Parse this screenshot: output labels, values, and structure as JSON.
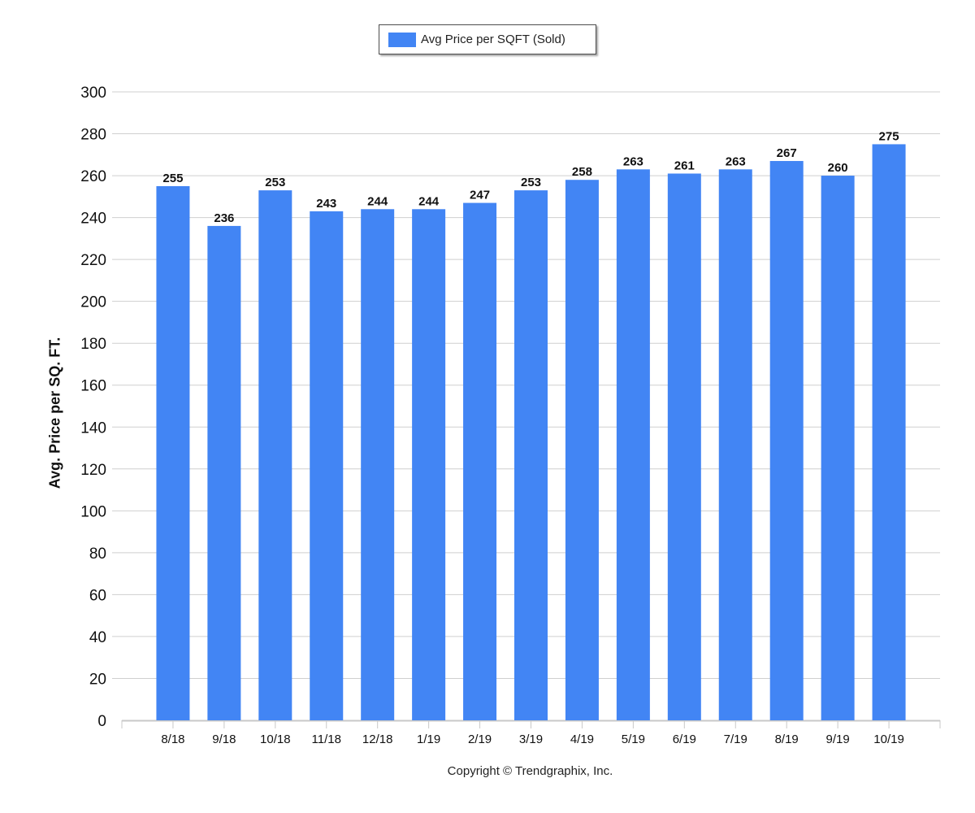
{
  "legend": {
    "label": "Avg Price per SQFT (Sold)",
    "color": "#4285f4"
  },
  "footer": {
    "copyright": "Copyright © Trendgraphix, Inc."
  },
  "chart_data": {
    "type": "bar",
    "ylabel": "Avg. Price per SQ. FT.",
    "xlabel": "",
    "ylim": [
      0,
      300
    ],
    "ytick_step": 20,
    "grid": true,
    "legend_position": "top-center",
    "bar_color": "#4285f4",
    "categories": [
      "8/18",
      "9/18",
      "10/18",
      "11/18",
      "12/18",
      "1/19",
      "2/19",
      "3/19",
      "4/19",
      "5/19",
      "6/19",
      "7/19",
      "8/19",
      "9/19",
      "10/19"
    ],
    "series": [
      {
        "name": "Avg Price per SQFT (Sold)",
        "values": [
          255,
          236,
          253,
          243,
          244,
          244,
          247,
          253,
          258,
          263,
          261,
          263,
          267,
          260,
          275
        ]
      }
    ]
  }
}
